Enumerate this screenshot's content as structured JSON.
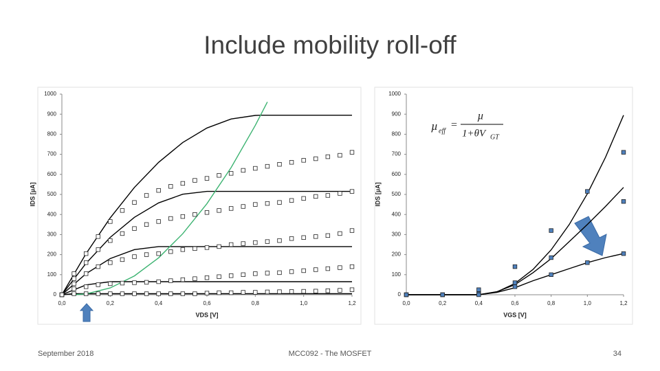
{
  "slide": {
    "title": "Include mobility roll-off",
    "footer": {
      "date": "September 2018",
      "center": "MCC092 - The MOSFET",
      "page": "34"
    }
  },
  "chart_data": [
    {
      "type": "line",
      "xlabel": "VDS [V]",
      "ylabel": "IDS [µA]",
      "xlim": [
        0,
        1.2
      ],
      "ylim": [
        0,
        1000
      ],
      "xticks": [
        {
          "value": 0,
          "label": "0,0"
        },
        {
          "value": 0.2,
          "label": "0,2"
        },
        {
          "value": 0.4,
          "label": "0,4"
        },
        {
          "value": 0.6,
          "label": "0,6"
        },
        {
          "value": 0.8,
          "label": "0,8"
        },
        {
          "value": 1.0,
          "label": "1,0"
        },
        {
          "value": 1.2,
          "label": "1,2"
        }
      ],
      "yticks": [
        0,
        100,
        200,
        300,
        400,
        500,
        600,
        700,
        800,
        900,
        1000
      ],
      "series": [
        {
          "style": "line",
          "color": "#000000",
          "x": [
            0,
            0.1,
            0.2,
            0.3,
            0.4,
            0.5,
            0.6,
            0.7,
            0.8,
            0.82,
            1.2
          ],
          "values": [
            0,
            205,
            383,
            535,
            660,
            759,
            831,
            876,
            894,
            895,
            895
          ]
        },
        {
          "style": "line",
          "color": "#000000",
          "x": [
            0,
            0.1,
            0.2,
            0.3,
            0.4,
            0.5,
            0.6,
            1.2
          ],
          "values": [
            0,
            157,
            286,
            386,
            458,
            501,
            515,
            515
          ]
        },
        {
          "style": "line",
          "color": "#000000",
          "x": [
            0,
            0.1,
            0.2,
            0.3,
            0.4,
            1.2
          ],
          "values": [
            0,
            105,
            180,
            225,
            240,
            240
          ]
        },
        {
          "style": "line",
          "color": "#000000",
          "x": [
            0,
            0.1,
            0.2,
            1.2
          ],
          "values": [
            0,
            49,
            65,
            65
          ]
        },
        {
          "style": "line",
          "color": "#000000",
          "x": [
            0,
            0.05,
            1.2
          ],
          "values": [
            0,
            5,
            5
          ]
        },
        {
          "style": "line",
          "color": "#3cb371",
          "x": [
            0.05,
            0.1,
            0.2,
            0.3,
            0.4,
            0.5,
            0.6,
            0.7,
            0.8,
            0.85
          ],
          "values": [
            0,
            4,
            34,
            94,
            184,
            304,
            454,
            634,
            844,
            961
          ]
        },
        {
          "style": "markers",
          "color": "#ffffff",
          "x": [
            0,
            0.05,
            0.1,
            0.15,
            0.2,
            0.25,
            0.3,
            0.35,
            0.4,
            0.45,
            0.5,
            0.55,
            0.6,
            0.65,
            0.7,
            0.75,
            0.8,
            0.85,
            0.9,
            0.95,
            1.0,
            1.05,
            1.1,
            1.15,
            1.2
          ],
          "values": [
            0,
            105,
            205,
            290,
            365,
            420,
            460,
            495,
            520,
            540,
            555,
            570,
            580,
            595,
            605,
            620,
            630,
            640,
            650,
            660,
            670,
            678,
            688,
            695,
            710
          ]
        },
        {
          "style": "markers",
          "color": "#ffffff",
          "x": [
            0,
            0.05,
            0.1,
            0.15,
            0.2,
            0.25,
            0.3,
            0.35,
            0.4,
            0.45,
            0.5,
            0.55,
            0.6,
            0.65,
            0.7,
            0.75,
            0.8,
            0.85,
            0.9,
            0.95,
            1.0,
            1.05,
            1.1,
            1.15,
            1.2
          ],
          "values": [
            0,
            80,
            160,
            225,
            270,
            305,
            330,
            350,
            365,
            380,
            390,
            400,
            410,
            420,
            430,
            440,
            450,
            455,
            460,
            470,
            480,
            490,
            495,
            505,
            515
          ]
        },
        {
          "style": "markers",
          "color": "#ffffff",
          "x": [
            0,
            0.05,
            0.1,
            0.15,
            0.2,
            0.25,
            0.3,
            0.35,
            0.4,
            0.45,
            0.5,
            0.55,
            0.6,
            0.65,
            0.7,
            0.75,
            0.8,
            0.85,
            0.9,
            0.95,
            1.0,
            1.05,
            1.1,
            1.15,
            1.2
          ],
          "values": [
            0,
            55,
            105,
            140,
            160,
            175,
            190,
            200,
            205,
            215,
            225,
            230,
            235,
            240,
            250,
            255,
            260,
            265,
            270,
            280,
            285,
            290,
            295,
            305,
            320
          ]
        },
        {
          "style": "markers",
          "color": "#ffffff",
          "x": [
            0,
            0.05,
            0.1,
            0.15,
            0.2,
            0.25,
            0.3,
            0.35,
            0.4,
            0.45,
            0.5,
            0.55,
            0.6,
            0.65,
            0.7,
            0.75,
            0.8,
            0.85,
            0.9,
            0.95,
            1.0,
            1.05,
            1.1,
            1.15,
            1.2
          ],
          "values": [
            0,
            30,
            40,
            50,
            55,
            58,
            60,
            62,
            65,
            70,
            75,
            80,
            85,
            90,
            95,
            100,
            105,
            108,
            110,
            115,
            120,
            125,
            130,
            135,
            140
          ]
        },
        {
          "style": "markers",
          "color": "#ffffff",
          "x": [
            0,
            0.05,
            0.1,
            0.15,
            0.2,
            0.25,
            0.3,
            0.35,
            0.4,
            0.45,
            0.5,
            0.55,
            0.6,
            0.65,
            0.7,
            0.75,
            0.8,
            0.85,
            0.9,
            0.95,
            1.0,
            1.05,
            1.1,
            1.15,
            1.2
          ],
          "values": [
            0,
            5,
            5,
            5,
            5,
            5,
            5,
            5,
            5,
            5,
            5,
            5,
            8,
            10,
            10,
            12,
            12,
            14,
            15,
            16,
            17,
            18,
            20,
            22,
            25
          ]
        }
      ]
    },
    {
      "type": "line",
      "xlabel": "VGS [V]",
      "ylabel": "IDS [µA]",
      "xlim": [
        0,
        1.2
      ],
      "ylim": [
        0,
        1000
      ],
      "xticks": [
        {
          "value": 0,
          "label": "0,0"
        },
        {
          "value": 0.2,
          "label": "0,2"
        },
        {
          "value": 0.4,
          "label": "0,4"
        },
        {
          "value": 0.6,
          "label": "0,6"
        },
        {
          "value": 0.8,
          "label": "0,8"
        },
        {
          "value": 1.0,
          "label": "1,0"
        },
        {
          "value": 1.2,
          "label": "1,2"
        }
      ],
      "yticks": [
        0,
        100,
        200,
        300,
        400,
        500,
        600,
        700,
        800,
        900,
        1000
      ],
      "annotation": {
        "lhs": "µ",
        "lhs_sub": "eff",
        "eq": "=",
        "num": "µ",
        "den": "1+θV",
        "den_sub": "GT"
      },
      "series": [
        {
          "style": "line",
          "color": "#000000",
          "x": [
            0,
            0.4,
            0.5,
            0.6,
            0.7,
            0.8,
            0.9,
            1.0,
            1.1,
            1.2
          ],
          "values": [
            0,
            0,
            14,
            56,
            126,
            224,
            350,
            503,
            685,
            895
          ]
        },
        {
          "style": "line",
          "color": "#000000",
          "x": [
            0,
            0.4,
            0.5,
            0.6,
            0.7,
            0.8,
            0.9,
            1.0,
            1.1,
            1.2
          ],
          "values": [
            0,
            0,
            15,
            50,
            110,
            180,
            265,
            350,
            440,
            535
          ]
        },
        {
          "style": "line",
          "color": "#000000",
          "x": [
            0,
            0.4,
            0.5,
            0.6,
            0.7,
            0.8,
            0.9,
            1.0,
            1.1,
            1.2
          ],
          "values": [
            0,
            0,
            12,
            35,
            70,
            100,
            130,
            160,
            185,
            205
          ]
        },
        {
          "style": "markers",
          "color": "#4f81bd",
          "x": [
            0,
            0.2,
            0.4,
            0.6,
            0.8,
            1.0,
            1.2
          ],
          "values": [
            0,
            0,
            25,
            140,
            320,
            515,
            710
          ]
        },
        {
          "style": "markers",
          "color": "#4f81bd",
          "x": [
            0,
            0.2,
            0.4,
            0.6,
            0.8,
            1.0,
            1.2
          ],
          "values": [
            0,
            0,
            5,
            60,
            185,
            null,
            465
          ]
        },
        {
          "style": "markers",
          "color": "#4f81bd",
          "x": [
            0,
            0.2,
            0.4,
            0.6,
            0.8,
            1.0,
            1.2
          ],
          "values": [
            0,
            0,
            0,
            40,
            100,
            160,
            205
          ]
        }
      ]
    }
  ]
}
